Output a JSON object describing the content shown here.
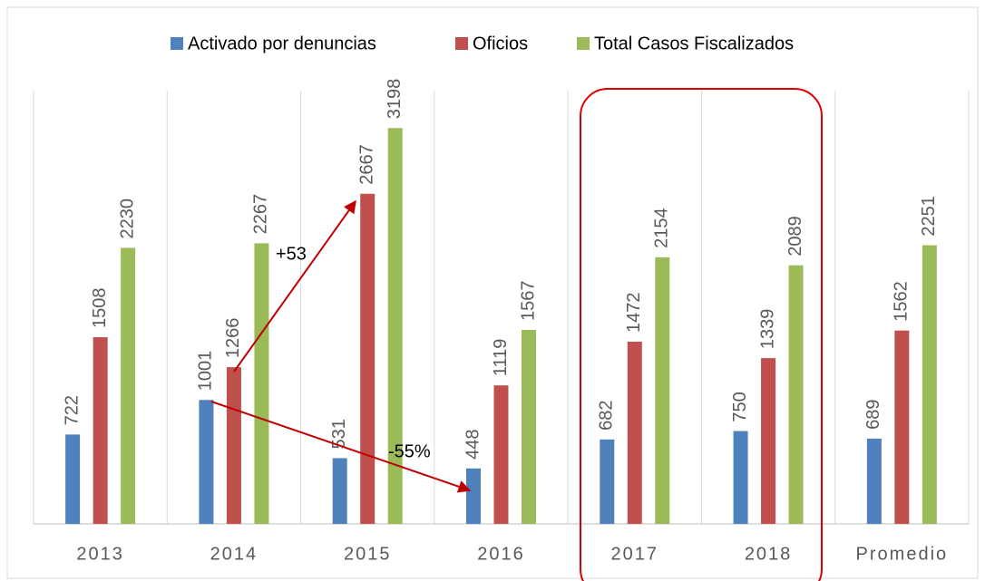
{
  "chart_data": {
    "type": "bar",
    "categories": [
      "2013",
      "2014",
      "2015",
      "2016",
      "2017",
      "2018",
      "Promedio"
    ],
    "series": [
      {
        "name": "Activado por denuncias",
        "color": "#4f81bd",
        "values": [
          722,
          1001,
          531,
          448,
          682,
          750,
          689
        ]
      },
      {
        "name": "Oficios",
        "color": "#c0504d",
        "values": [
          1508,
          1266,
          2667,
          1119,
          1472,
          1339,
          1562
        ]
      },
      {
        "name": "Total Casos Fiscalizados",
        "color": "#9bbb59",
        "values": [
          2230,
          2267,
          3198,
          1567,
          2154,
          2089,
          2251
        ]
      }
    ],
    "ylim": [
      0,
      3500
    ],
    "annotations": [
      "+53",
      "-55%"
    ],
    "legend": "top"
  }
}
